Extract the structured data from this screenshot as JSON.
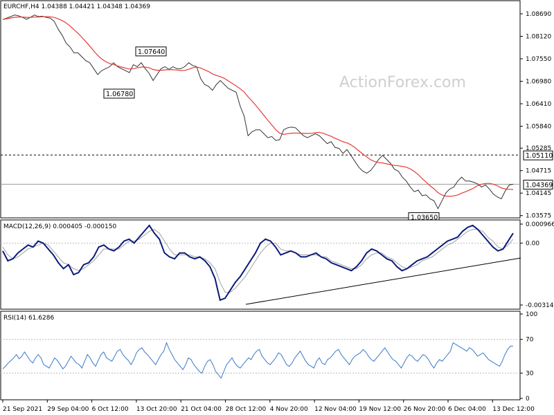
{
  "watermark": "ActionForex.com",
  "chart_data": [
    {
      "type": "line",
      "title": "EURCHF,H4  1.04388 1.04421 1.04348 1.04369",
      "ylim": [
        1.0357,
        1.0897
      ],
      "yticks": [
        "1.08690",
        "1.08120",
        "1.07550",
        "1.06980",
        "1.06410",
        "1.05840",
        "1.05285",
        "1.04715",
        "1.04145",
        "1.03575"
      ],
      "ytick_values": [
        1.0869,
        1.0812,
        1.0755,
        1.0698,
        1.0641,
        1.0584,
        1.05285,
        1.04715,
        1.04145,
        1.03575
      ],
      "current_price": {
        "label": "1.04369",
        "value": 1.04369
      },
      "level_line": {
        "label": "1.05110",
        "value": 1.0511
      },
      "annotations": [
        {
          "label": "1.07640",
          "value": 1.0764
        },
        {
          "label": "1.06780",
          "value": 1.0678
        },
        {
          "label": "1.03650",
          "value": 1.0365
        }
      ],
      "series": [
        {
          "values": [
            1.0855,
            1.0858,
            1.0862,
            1.0866,
            1.0864,
            1.086,
            1.0855,
            1.086,
            1.0866,
            1.0862,
            1.0863,
            1.086,
            1.0858,
            1.085,
            1.083,
            1.0815,
            1.0795,
            1.0785,
            1.077,
            1.077,
            1.076,
            1.075,
            1.0745,
            1.073,
            1.0715,
            1.0725,
            1.073,
            1.0735,
            1.0745,
            1.0735,
            1.073,
            1.0725,
            1.072,
            1.074,
            1.0735,
            1.0745,
            1.073,
            1.0718,
            1.07,
            1.0715,
            1.073,
            1.0735,
            1.0728,
            1.0735,
            1.073,
            1.073,
            1.0735,
            1.0745,
            1.0738,
            1.0735,
            1.0705,
            1.069,
            1.0685,
            1.0675,
            1.069,
            1.07,
            1.069,
            1.068,
            1.0675,
            1.067,
            1.0635,
            1.061,
            1.056,
            1.057,
            1.0575,
            1.0575,
            1.0565,
            1.0555,
            1.0558,
            1.0548,
            1.055,
            1.0575,
            1.058,
            1.0582,
            1.058,
            1.057,
            1.056,
            1.0555,
            1.056,
            1.0565,
            1.056,
            1.055,
            1.054,
            1.0545,
            1.053,
            1.0528,
            1.0515,
            1.0525,
            1.051,
            1.0495,
            1.048,
            1.047,
            1.0465,
            1.0472,
            1.0485,
            1.05,
            1.051,
            1.05,
            1.049,
            1.0475,
            1.047,
            1.0455,
            1.0445,
            1.043,
            1.0418,
            1.0422,
            1.0408,
            1.041,
            1.04,
            1.0395,
            1.0375,
            1.0395,
            1.0415,
            1.0425,
            1.043,
            1.0445,
            1.0455,
            1.0445,
            1.0445,
            1.0442,
            1.0438,
            1.043,
            1.0435,
            1.0425,
            1.0412,
            1.0405,
            1.04,
            1.042,
            1.0435,
            1.0437
          ]
        }
      ]
    },
    {
      "type": "line",
      "title": "MACD(12,26,9) 0.000405 -0.000150",
      "ylim": [
        -0.003149,
        0.000966
      ],
      "yticks": [
        "0.000966",
        "0.00",
        "-0.003149"
      ],
      "ytick_values": [
        0.000966,
        0,
        -0.003149
      ],
      "series": [
        {
          "values": [
            -0.0004,
            -0.0009,
            -0.0008,
            -0.0005,
            -0.0003,
            -0.0001,
            -0.0002,
            0.0001,
            0.0,
            -0.0003,
            -0.0006,
            -0.001,
            -0.0013,
            -0.0011,
            -0.0016,
            -0.0015,
            -0.0011,
            -0.001,
            -0.0007,
            -0.0002,
            -0.0001,
            -0.0003,
            -0.0004,
            -0.0002,
            0.0001,
            0.0002,
            0.0,
            0.0003,
            0.0006,
            0.0009,
            0.0005,
            0.0002,
            -0.0005,
            -0.0007,
            -0.0008,
            -0.0005,
            -0.0005,
            -0.0007,
            -0.0008,
            -0.0007,
            -0.0009,
            -0.0012,
            -0.0018,
            -0.0029,
            -0.0028,
            -0.0024,
            -0.002,
            -0.0017,
            -0.0013,
            -0.0009,
            -0.0005,
            0.0,
            0.0002,
            0.0001,
            -0.0002,
            -0.0006,
            -0.0005,
            -0.0004,
            -0.0005,
            -0.0007,
            -0.0007,
            -0.0006,
            -0.0005,
            -0.0007,
            -0.0008,
            -0.001,
            -0.0011,
            -0.0012,
            -0.0013,
            -0.0014,
            -0.0012,
            -0.0009,
            -0.0005,
            -0.0003,
            -0.0004,
            -0.0006,
            -0.0008,
            -0.0009,
            -0.0012,
            -0.0014,
            -0.0013,
            -0.0011,
            -0.0009,
            -0.0008,
            -0.0007,
            -0.0005,
            -0.0003,
            -0.0001,
            0.0001,
            0.0002,
            0.0003,
            0.0006,
            0.0008,
            0.0009,
            0.0007,
            0.0004,
            0.0001,
            -0.0002,
            -0.0004,
            -0.0003,
            0.0001,
            0.0005
          ]
        },
        {
          "values": [
            -0.0002,
            -0.0006,
            -0.0008,
            -0.0007,
            -0.0005,
            -0.0003,
            -0.0002,
            -0.0001,
            0.0,
            -0.0001,
            -0.0004,
            -0.0007,
            -0.001,
            -0.0011,
            -0.0013,
            -0.0014,
            -0.0013,
            -0.0011,
            -0.0009,
            -0.0006,
            -0.0003,
            -0.0003,
            -0.0003,
            -0.0003,
            -0.0001,
            0.0001,
            0.0001,
            0.0002,
            0.0004,
            0.0006,
            0.0007,
            0.0005,
            0.0001,
            -0.0003,
            -0.0006,
            -0.0006,
            -0.0006,
            -0.0006,
            -0.0007,
            -0.0007,
            -0.0008,
            -0.001,
            -0.0013,
            -0.002,
            -0.0025,
            -0.0025,
            -0.0023,
            -0.002,
            -0.0017,
            -0.0013,
            -0.0009,
            -0.0005,
            -0.0002,
            0.0,
            0.0,
            -0.0003,
            -0.0004,
            -0.0004,
            -0.0005,
            -0.0006,
            -0.0006,
            -0.0006,
            -0.0006,
            -0.0007,
            -0.0007,
            -0.0009,
            -0.001,
            -0.0011,
            -0.0012,
            -0.0013,
            -0.0013,
            -0.0011,
            -0.0008,
            -0.0006,
            -0.0005,
            -0.0005,
            -0.0007,
            -0.0008,
            -0.001,
            -0.0012,
            -0.0013,
            -0.0012,
            -0.0011,
            -0.0009,
            -0.0008,
            -0.0007,
            -0.0005,
            -0.0003,
            -0.0001,
            0.0,
            0.0002,
            0.0004,
            0.0006,
            0.0007,
            0.0007,
            0.0006,
            0.0003,
            0.0001,
            -0.0002,
            -0.0003,
            -0.0001,
            0.0002
          ]
        }
      ]
    },
    {
      "type": "line",
      "title": "RSI(14) 61.6286",
      "ylim": [
        0,
        100
      ],
      "yticks": [
        "100",
        "70",
        "30",
        "0"
      ],
      "ytick_values": [
        100,
        70,
        30,
        0
      ],
      "levels": [
        70,
        30
      ],
      "series": [
        {
          "values": [
            35,
            38,
            42,
            45,
            48,
            52,
            47,
            50,
            55,
            50,
            45,
            42,
            48,
            52,
            48,
            40,
            38,
            36,
            42,
            48,
            45,
            40,
            35,
            38,
            44,
            50,
            46,
            42,
            40,
            36,
            44,
            52,
            48,
            42,
            38,
            45,
            52,
            55,
            48,
            46,
            44,
            50,
            56,
            58,
            52,
            48,
            45,
            40,
            46,
            54,
            58,
            60,
            55,
            52,
            48,
            44,
            40,
            46,
            52,
            56,
            66,
            58,
            52,
            46,
            42,
            38,
            34,
            40,
            48,
            46,
            40,
            36,
            32,
            30,
            38,
            44,
            46,
            40,
            32,
            28,
            24,
            32,
            40,
            44,
            48,
            42,
            38,
            36,
            40,
            44,
            48,
            46,
            52,
            56,
            58,
            50,
            46,
            42,
            40,
            44,
            48,
            54,
            52,
            46,
            40,
            38,
            42,
            48,
            52,
            56,
            50,
            44,
            40,
            38,
            36,
            44,
            48,
            42,
            40,
            46,
            48,
            52,
            56,
            58,
            52,
            48,
            44,
            40,
            46,
            50,
            52,
            54,
            58,
            55,
            50,
            46,
            44,
            48,
            52,
            56,
            60,
            55,
            50,
            46,
            44,
            40,
            36,
            42,
            48,
            52,
            50,
            46,
            44,
            48,
            52,
            50,
            46,
            40,
            36,
            42,
            46,
            44,
            48,
            52,
            56,
            66,
            64,
            62,
            60,
            58,
            56,
            60,
            58,
            54,
            50,
            52,
            54,
            50,
            46,
            44,
            42,
            40,
            38,
            44,
            52,
            58,
            62,
            62
          ]
        }
      ]
    }
  ],
  "x_axis": {
    "labels": [
      "21 Sep 2021",
      "29 Sep 04:00",
      "6 Oct 12:00",
      "13 Oct 20:00",
      "21 Oct 04:00",
      "28 Oct 12:00",
      "4 Nov 20:00",
      "12 Nov 04:00",
      "19 Nov 12:00",
      "26 Nov 20:00",
      "6 Dec 04:00",
      "13 Dec 12:00"
    ]
  },
  "colors": {
    "price": "#333333",
    "moving_average": "#e53935",
    "macd": "#0a1a7a",
    "signal": "#a0a0a0",
    "rsi": "#3a78c8",
    "trendline": "#000000"
  }
}
